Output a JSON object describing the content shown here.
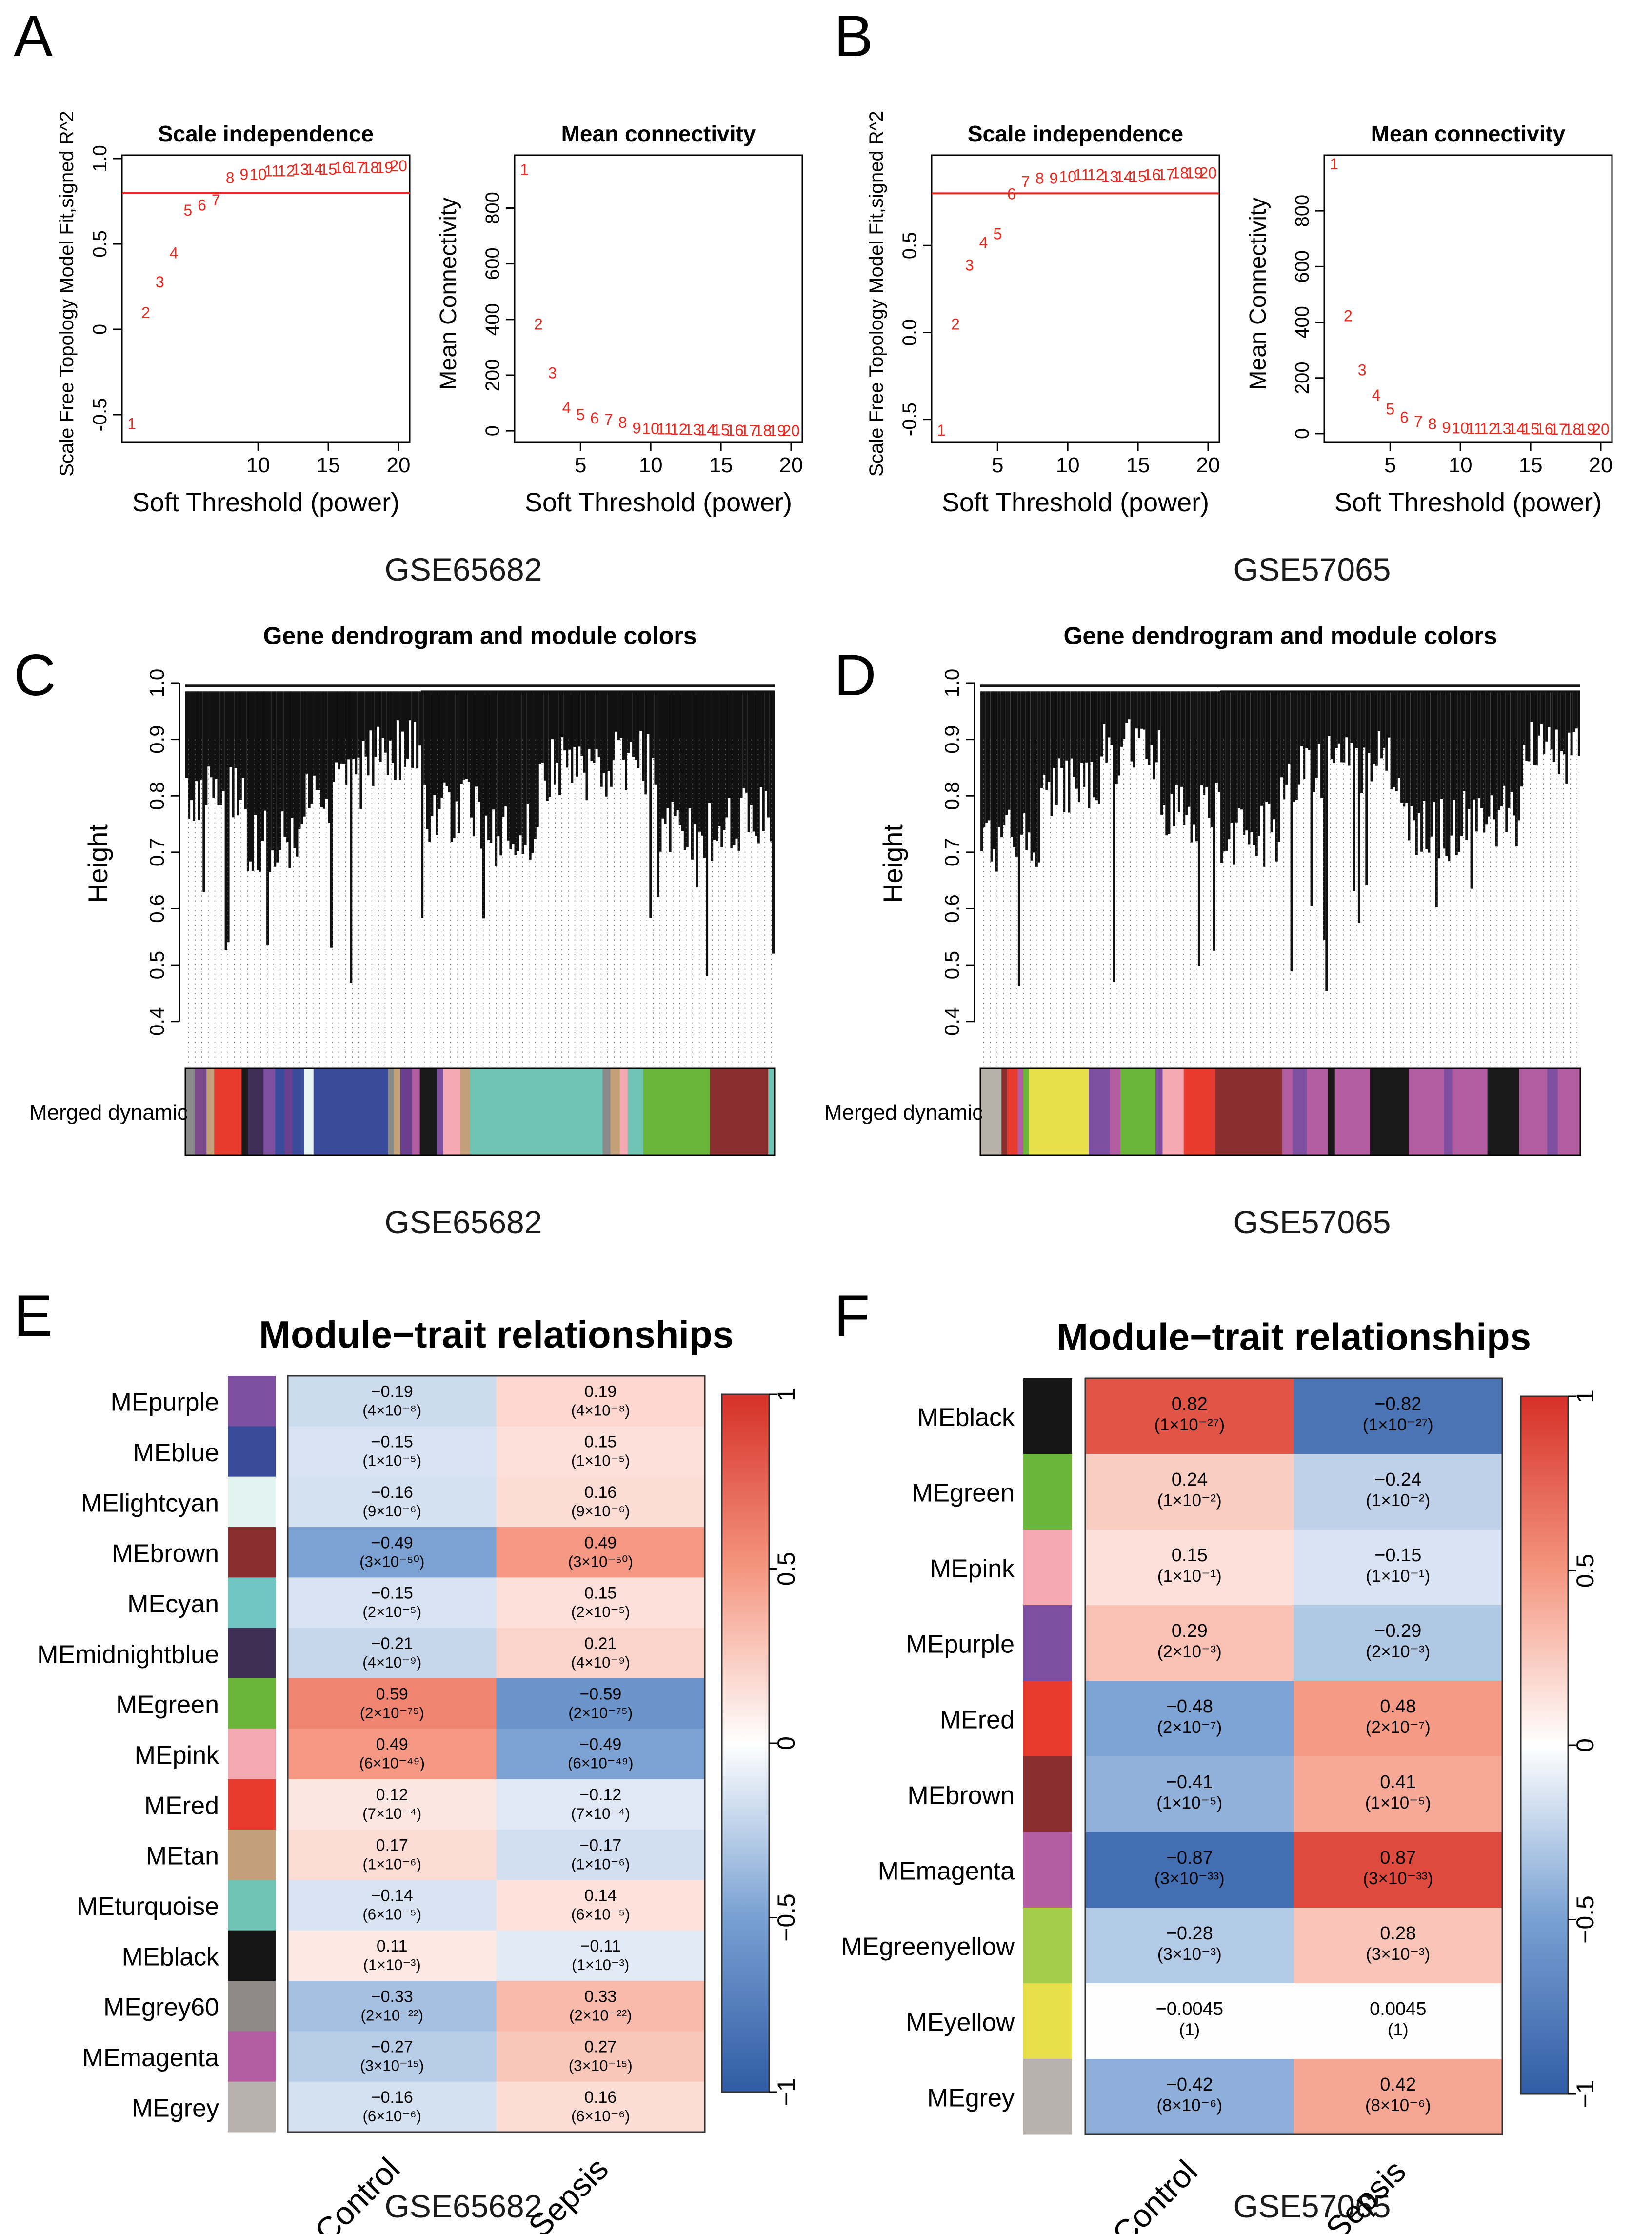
{
  "panels": {
    "A": {
      "letter": "A",
      "dataset": "GSE65682"
    },
    "B": {
      "letter": "B",
      "dataset": "GSE57065"
    },
    "C": {
      "letter": "C",
      "dataset": "GSE65682"
    },
    "D": {
      "letter": "D",
      "dataset": "GSE57065"
    },
    "E": {
      "letter": "E",
      "dataset": "GSE65682"
    },
    "F": {
      "letter": "F",
      "dataset": "GSE57065"
    }
  },
  "colors": {
    "point_red": "#e8291f",
    "line_black": "#000000",
    "bg": "#ffffff"
  },
  "chart_data": [
    {
      "id": "A-scale",
      "type": "scatter",
      "title": "Scale independence",
      "xlabel": "Soft Threshold (power)",
      "ylabel": "Scale Free Topology Model Fit,signed R^2",
      "xlim": [
        0.3,
        20.8
      ],
      "ylim": [
        -0.66,
        1.02
      ],
      "xticks": [
        10,
        15,
        20
      ],
      "yticks": [
        -0.5,
        0,
        0.5,
        1.0
      ],
      "ytick_labels": [
        "-0.5",
        "0",
        "0.5",
        "1.0"
      ],
      "hline": 0.8,
      "labels": [
        "1",
        "2",
        "3",
        "4",
        "5",
        "6",
        "7",
        "8",
        "9",
        "10",
        "11",
        "12",
        "13",
        "14",
        "15",
        "16",
        "17",
        "18",
        "19",
        "20"
      ],
      "x": [
        1,
        2,
        3,
        4,
        5,
        6,
        7,
        8,
        9,
        10,
        11,
        12,
        13,
        14,
        15,
        16,
        17,
        18,
        19,
        20
      ],
      "y": [
        -0.55,
        0.1,
        0.28,
        0.45,
        0.7,
        0.73,
        0.76,
        0.89,
        0.91,
        0.91,
        0.93,
        0.93,
        0.94,
        0.94,
        0.94,
        0.95,
        0.95,
        0.95,
        0.95,
        0.96
      ]
    },
    {
      "id": "A-mean",
      "type": "scatter",
      "title": "Mean connectivity",
      "xlabel": "Soft Threshold (power)",
      "ylabel": "Mean Connectivity",
      "xlim": [
        0.3,
        20.8
      ],
      "ylim": [
        -40,
        990
      ],
      "xticks": [
        5,
        10,
        15,
        20
      ],
      "yticks": [
        0,
        200,
        400,
        600,
        800
      ],
      "labels": [
        "1",
        "2",
        "3",
        "4",
        "5",
        "6",
        "7",
        "8",
        "9",
        "10",
        "11",
        "12",
        "13",
        "14",
        "15",
        "16",
        "17",
        "18",
        "19",
        "20"
      ],
      "x": [
        1,
        2,
        3,
        4,
        5,
        6,
        7,
        8,
        9,
        10,
        11,
        12,
        13,
        14,
        15,
        16,
        17,
        18,
        19,
        20
      ],
      "y": [
        940,
        385,
        210,
        85,
        60,
        48,
        42,
        32,
        12,
        10,
        8,
        7,
        6,
        5,
        5,
        4,
        3,
        3,
        2,
        2
      ]
    },
    {
      "id": "B-scale",
      "type": "scatter",
      "title": "Scale independence",
      "xlabel": "Soft Threshold (power)",
      "ylabel": "Scale Free Topology Model Fit,signed R^2",
      "xlim": [
        0.3,
        20.8
      ],
      "ylim": [
        -0.63,
        1.02
      ],
      "xticks": [
        5,
        10,
        15,
        20
      ],
      "yticks": [
        -0.5,
        0,
        0.5
      ],
      "ytick_labels": [
        "-0.5",
        "0.0",
        "0.5"
      ],
      "hline": 0.8,
      "labels": [
        "1",
        "2",
        "3",
        "4",
        "5",
        "6",
        "7",
        "8",
        "9",
        "10",
        "11",
        "12",
        "13",
        "14",
        "15",
        "16",
        "17",
        "18",
        "19",
        "20"
      ],
      "x": [
        1,
        2,
        3,
        4,
        5,
        6,
        7,
        8,
        9,
        10,
        11,
        12,
        13,
        14,
        15,
        16,
        17,
        18,
        19,
        20
      ],
      "y": [
        -0.56,
        0.05,
        0.39,
        0.52,
        0.57,
        0.8,
        0.87,
        0.89,
        0.89,
        0.9,
        0.91,
        0.91,
        0.9,
        0.9,
        0.9,
        0.91,
        0.91,
        0.92,
        0.92,
        0.92
      ]
    },
    {
      "id": "B-mean",
      "type": "scatter",
      "title": "Mean connectivity",
      "xlabel": "Soft Threshold (power)",
      "ylabel": "Mean Connectivity",
      "xlim": [
        0.3,
        20.8
      ],
      "ylim": [
        -30,
        1000
      ],
      "xticks": [
        5,
        10,
        15,
        20
      ],
      "yticks": [
        0,
        200,
        400,
        600,
        800
      ],
      "labels": [
        "1",
        "2",
        "3",
        "4",
        "5",
        "6",
        "7",
        "8",
        "9",
        "10",
        "11",
        "12",
        "13",
        "14",
        "15",
        "16",
        "17",
        "18",
        "19",
        "20"
      ],
      "x": [
        1,
        2,
        3,
        4,
        5,
        6,
        7,
        8,
        9,
        10,
        11,
        12,
        13,
        14,
        15,
        16,
        17,
        18,
        19,
        20
      ],
      "y": [
        970,
        425,
        230,
        140,
        90,
        60,
        45,
        37,
        23,
        22,
        20,
        20,
        20,
        19,
        18,
        18,
        17,
        17,
        17,
        17
      ]
    },
    {
      "id": "C-dendro",
      "type": "dendrogram",
      "title": "Gene dendrogram and module colors",
      "ylabel": "Height",
      "ylim": [
        0.36,
        1.0
      ],
      "yticks": [
        0.4,
        0.5,
        0.6,
        0.7,
        0.8,
        0.9,
        1.0
      ],
      "color_row_label": "Merged dynamic",
      "module_segments": [
        {
          "color": "#8a8a8a",
          "width": 1.2
        },
        {
          "color": "#7a4a8a",
          "width": 1.5
        },
        {
          "color": "#c4a07a",
          "width": 1
        },
        {
          "color": "#e63b2e",
          "width": 3.5
        },
        {
          "color": "#1a1a1a",
          "width": 0.8
        },
        {
          "color": "#3f2f57",
          "width": 2
        },
        {
          "color": "#7e4fa0",
          "width": 1.5
        },
        {
          "color": "#3b4b9b",
          "width": 1.2
        },
        {
          "color": "#6a3f8c",
          "width": 1
        },
        {
          "color": "#3b4b9b",
          "width": 1.5
        },
        {
          "color": "#e8f5f2",
          "width": 1.2
        },
        {
          "color": "#3b4b9b",
          "width": 9.5
        },
        {
          "color": "#8a8a8a",
          "width": 0.8
        },
        {
          "color": "#c4a07a",
          "width": 0.8
        },
        {
          "color": "#6a3f8c",
          "width": 1.5
        },
        {
          "color": "#b25da1",
          "width": 1
        },
        {
          "color": "#1a1a1a",
          "width": 2.2
        },
        {
          "color": "#7e4fa0",
          "width": 0.8
        },
        {
          "color": "#f4a8b2",
          "width": 2.2
        },
        {
          "color": "#c4a07a",
          "width": 1.2
        },
        {
          "color": "#6fc3b3",
          "width": 17
        },
        {
          "color": "#8a8a8a",
          "width": 1
        },
        {
          "color": "#c4a07a",
          "width": 1.2
        },
        {
          "color": "#f4a8b2",
          "width": 1
        },
        {
          "color": "#6fc3b3",
          "width": 2
        },
        {
          "color": "#6ab53a",
          "width": 8.5
        },
        {
          "color": "#8a2f2f",
          "width": 7.5
        },
        {
          "color": "#6fc3b3",
          "width": 0.8
        }
      ]
    },
    {
      "id": "D-dendro",
      "type": "dendrogram",
      "title": "Gene dendrogram and module colors",
      "ylabel": "Height",
      "ylim": [
        0.36,
        1.0
      ],
      "yticks": [
        0.4,
        0.5,
        0.6,
        0.7,
        0.8,
        0.9,
        1.0
      ],
      "color_row_label": "Merged dynamic",
      "module_segments": [
        {
          "color": "#b7b1a9",
          "width": 3
        },
        {
          "color": "#8a2f2f",
          "width": 0.8
        },
        {
          "color": "#e63b2e",
          "width": 1.5
        },
        {
          "color": "#b25da1",
          "width": 0.8
        },
        {
          "color": "#6ab53a",
          "width": 0.8
        },
        {
          "color": "#e8e04a",
          "width": 8.5
        },
        {
          "color": "#7e4fa0",
          "width": 3
        },
        {
          "color": "#b25da1",
          "width": 1.5
        },
        {
          "color": "#6ab53a",
          "width": 5
        },
        {
          "color": "#7e4fa0",
          "width": 1
        },
        {
          "color": "#f4a8b2",
          "width": 3
        },
        {
          "color": "#e63b2e",
          "width": 4.5
        },
        {
          "color": "#8a2f2f",
          "width": 9.5
        },
        {
          "color": "#b25da1",
          "width": 1.5
        },
        {
          "color": "#7e4fa0",
          "width": 2
        },
        {
          "color": "#b25da1",
          "width": 3
        },
        {
          "color": "#1a1a1a",
          "width": 1
        },
        {
          "color": "#b25da1",
          "width": 5
        },
        {
          "color": "#1a1a1a",
          "width": 5.5
        },
        {
          "color": "#b25da1",
          "width": 5
        },
        {
          "color": "#7e4fa0",
          "width": 1.2
        },
        {
          "color": "#b25da1",
          "width": 5
        },
        {
          "color": "#1a1a1a",
          "width": 4.5
        },
        {
          "color": "#b25da1",
          "width": 4
        },
        {
          "color": "#7e4fa0",
          "width": 1.5
        },
        {
          "color": "#b25da1",
          "width": 3.2
        }
      ]
    },
    {
      "id": "E-heatmap",
      "type": "heatmap",
      "title": "Module−trait relationships",
      "columns": [
        "Control",
        "Sepsis"
      ],
      "legend_ticks": [
        1,
        0.5,
        0,
        -0.5,
        -1
      ],
      "legend_tick_labels": [
        "1",
        "0.5",
        "0",
        "−0.5",
        "−1"
      ],
      "rows": [
        {
          "name": "MEpurple",
          "color": "#7e4fa0",
          "values": [
            -0.19,
            0.19
          ],
          "texts": [
            "−0.19",
            "0.19"
          ],
          "p": "(4×10⁻⁸)"
        },
        {
          "name": "MEblue",
          "color": "#3b4b9b",
          "values": [
            -0.15,
            0.15
          ],
          "texts": [
            "−0.15",
            "0.15"
          ],
          "p": "(1×10⁻⁵)"
        },
        {
          "name": "MElightcyan",
          "color": "#e3f3ef",
          "values": [
            -0.16,
            0.16
          ],
          "texts": [
            "−0.16",
            "0.16"
          ],
          "p": "(9×10⁻⁶)"
        },
        {
          "name": "MEbrown",
          "color": "#8a2f2f",
          "values": [
            -0.49,
            0.49
          ],
          "texts": [
            "−0.49",
            "0.49"
          ],
          "p": "(3×10⁻⁵⁰)"
        },
        {
          "name": "MEcyan",
          "color": "#6fc6c3",
          "values": [
            -0.15,
            0.15
          ],
          "texts": [
            "−0.15",
            "0.15"
          ],
          "p": "(2×10⁻⁵)"
        },
        {
          "name": "MEmidnightblue",
          "color": "#3f2f57",
          "values": [
            -0.21,
            0.21
          ],
          "texts": [
            "−0.21",
            "0.21"
          ],
          "p": "(4×10⁻⁹)"
        },
        {
          "name": "MEgreen",
          "color": "#6ab53a",
          "values": [
            0.59,
            -0.59
          ],
          "texts": [
            "0.59",
            "−0.59"
          ],
          "p": "(2×10⁻⁷⁵)"
        },
        {
          "name": "MEpink",
          "color": "#f4a8b2",
          "values": [
            0.49,
            -0.49
          ],
          "texts": [
            "0.49",
            "−0.49"
          ],
          "p": "(6×10⁻⁴⁹)"
        },
        {
          "name": "MEred",
          "color": "#e63b2e",
          "values": [
            0.12,
            -0.12
          ],
          "texts": [
            "0.12",
            "−0.12"
          ],
          "p": "(7×10⁻⁴)"
        },
        {
          "name": "MEtan",
          "color": "#c4a07a",
          "values": [
            0.17,
            -0.17
          ],
          "texts": [
            "0.17",
            "−0.17"
          ],
          "p": "(1×10⁻⁶)"
        },
        {
          "name": "MEturquoise",
          "color": "#6fc3b3",
          "values": [
            -0.14,
            0.14
          ],
          "texts": [
            "−0.14",
            "0.14"
          ],
          "p": "(6×10⁻⁵)"
        },
        {
          "name": "MEblack",
          "color": "#151515",
          "values": [
            0.11,
            -0.11
          ],
          "texts": [
            "0.11",
            "−0.11"
          ],
          "p": "(1×10⁻³)"
        },
        {
          "name": "MEgrey60",
          "color": "#8f8a88",
          "values": [
            -0.33,
            0.33
          ],
          "texts": [
            "−0.33",
            "0.33"
          ],
          "p": "(2×10⁻²²)"
        },
        {
          "name": "MEmagenta",
          "color": "#b25da1",
          "values": [
            -0.27,
            0.27
          ],
          "texts": [
            "−0.27",
            "0.27"
          ],
          "p": "(3×10⁻¹⁵)"
        },
        {
          "name": "MEgrey",
          "color": "#b9b1ad",
          "values": [
            -0.16,
            0.16
          ],
          "texts": [
            "−0.16",
            "0.16"
          ],
          "p": "(6×10⁻⁶)"
        }
      ]
    },
    {
      "id": "F-heatmap",
      "type": "heatmap",
      "title": "Module−trait relationships",
      "columns": [
        "Control",
        "Sepsis"
      ],
      "legend_ticks": [
        1,
        0.5,
        0,
        -0.5,
        -1
      ],
      "legend_tick_labels": [
        "1",
        "0.5",
        "0",
        "−0.5",
        "−1"
      ],
      "rows": [
        {
          "name": "MEblack",
          "color": "#151515",
          "values": [
            0.82,
            -0.82
          ],
          "texts": [
            "0.82",
            "−0.82"
          ],
          "p": "(1×10⁻²⁷)"
        },
        {
          "name": "MEgreen",
          "color": "#6ab53a",
          "values": [
            0.24,
            -0.24
          ],
          "texts": [
            "0.24",
            "−0.24"
          ],
          "p": "(1×10⁻²)"
        },
        {
          "name": "MEpink",
          "color": "#f4a8b2",
          "values": [
            0.15,
            -0.15
          ],
          "texts": [
            "0.15",
            "−0.15"
          ],
          "p": "(1×10⁻¹)"
        },
        {
          "name": "MEpurple",
          "color": "#7e4fa0",
          "values": [
            0.29,
            -0.29
          ],
          "texts": [
            "0.29",
            "−0.29"
          ],
          "p": "(2×10⁻³)"
        },
        {
          "name": "MEred",
          "color": "#e63b2e",
          "values": [
            -0.48,
            0.48
          ],
          "texts": [
            "−0.48",
            "0.48"
          ],
          "p": "(2×10⁻⁷)"
        },
        {
          "name": "MEbrown",
          "color": "#8a2f2f",
          "values": [
            -0.41,
            0.41
          ],
          "texts": [
            "−0.41",
            "0.41"
          ],
          "p": "(1×10⁻⁵)"
        },
        {
          "name": "MEmagenta",
          "color": "#b25da1",
          "values": [
            -0.87,
            0.87
          ],
          "texts": [
            "−0.87",
            "0.87"
          ],
          "p": "(3×10⁻³³)"
        },
        {
          "name": "MEgreenyellow",
          "color": "#a6cc4c",
          "values": [
            -0.28,
            0.28
          ],
          "texts": [
            "−0.28",
            "0.28"
          ],
          "p": "(3×10⁻³)"
        },
        {
          "name": "MEyellow",
          "color": "#e8e04a",
          "values": [
            -0.0045,
            0.0045
          ],
          "texts": [
            "−0.0045",
            "0.0045"
          ],
          "p": "(1)"
        },
        {
          "name": "MEgrey",
          "color": "#b9b1ad",
          "values": [
            -0.42,
            0.42
          ],
          "texts": [
            "−0.42",
            "0.42"
          ],
          "p": "(8×10⁻⁶)"
        }
      ]
    }
  ]
}
